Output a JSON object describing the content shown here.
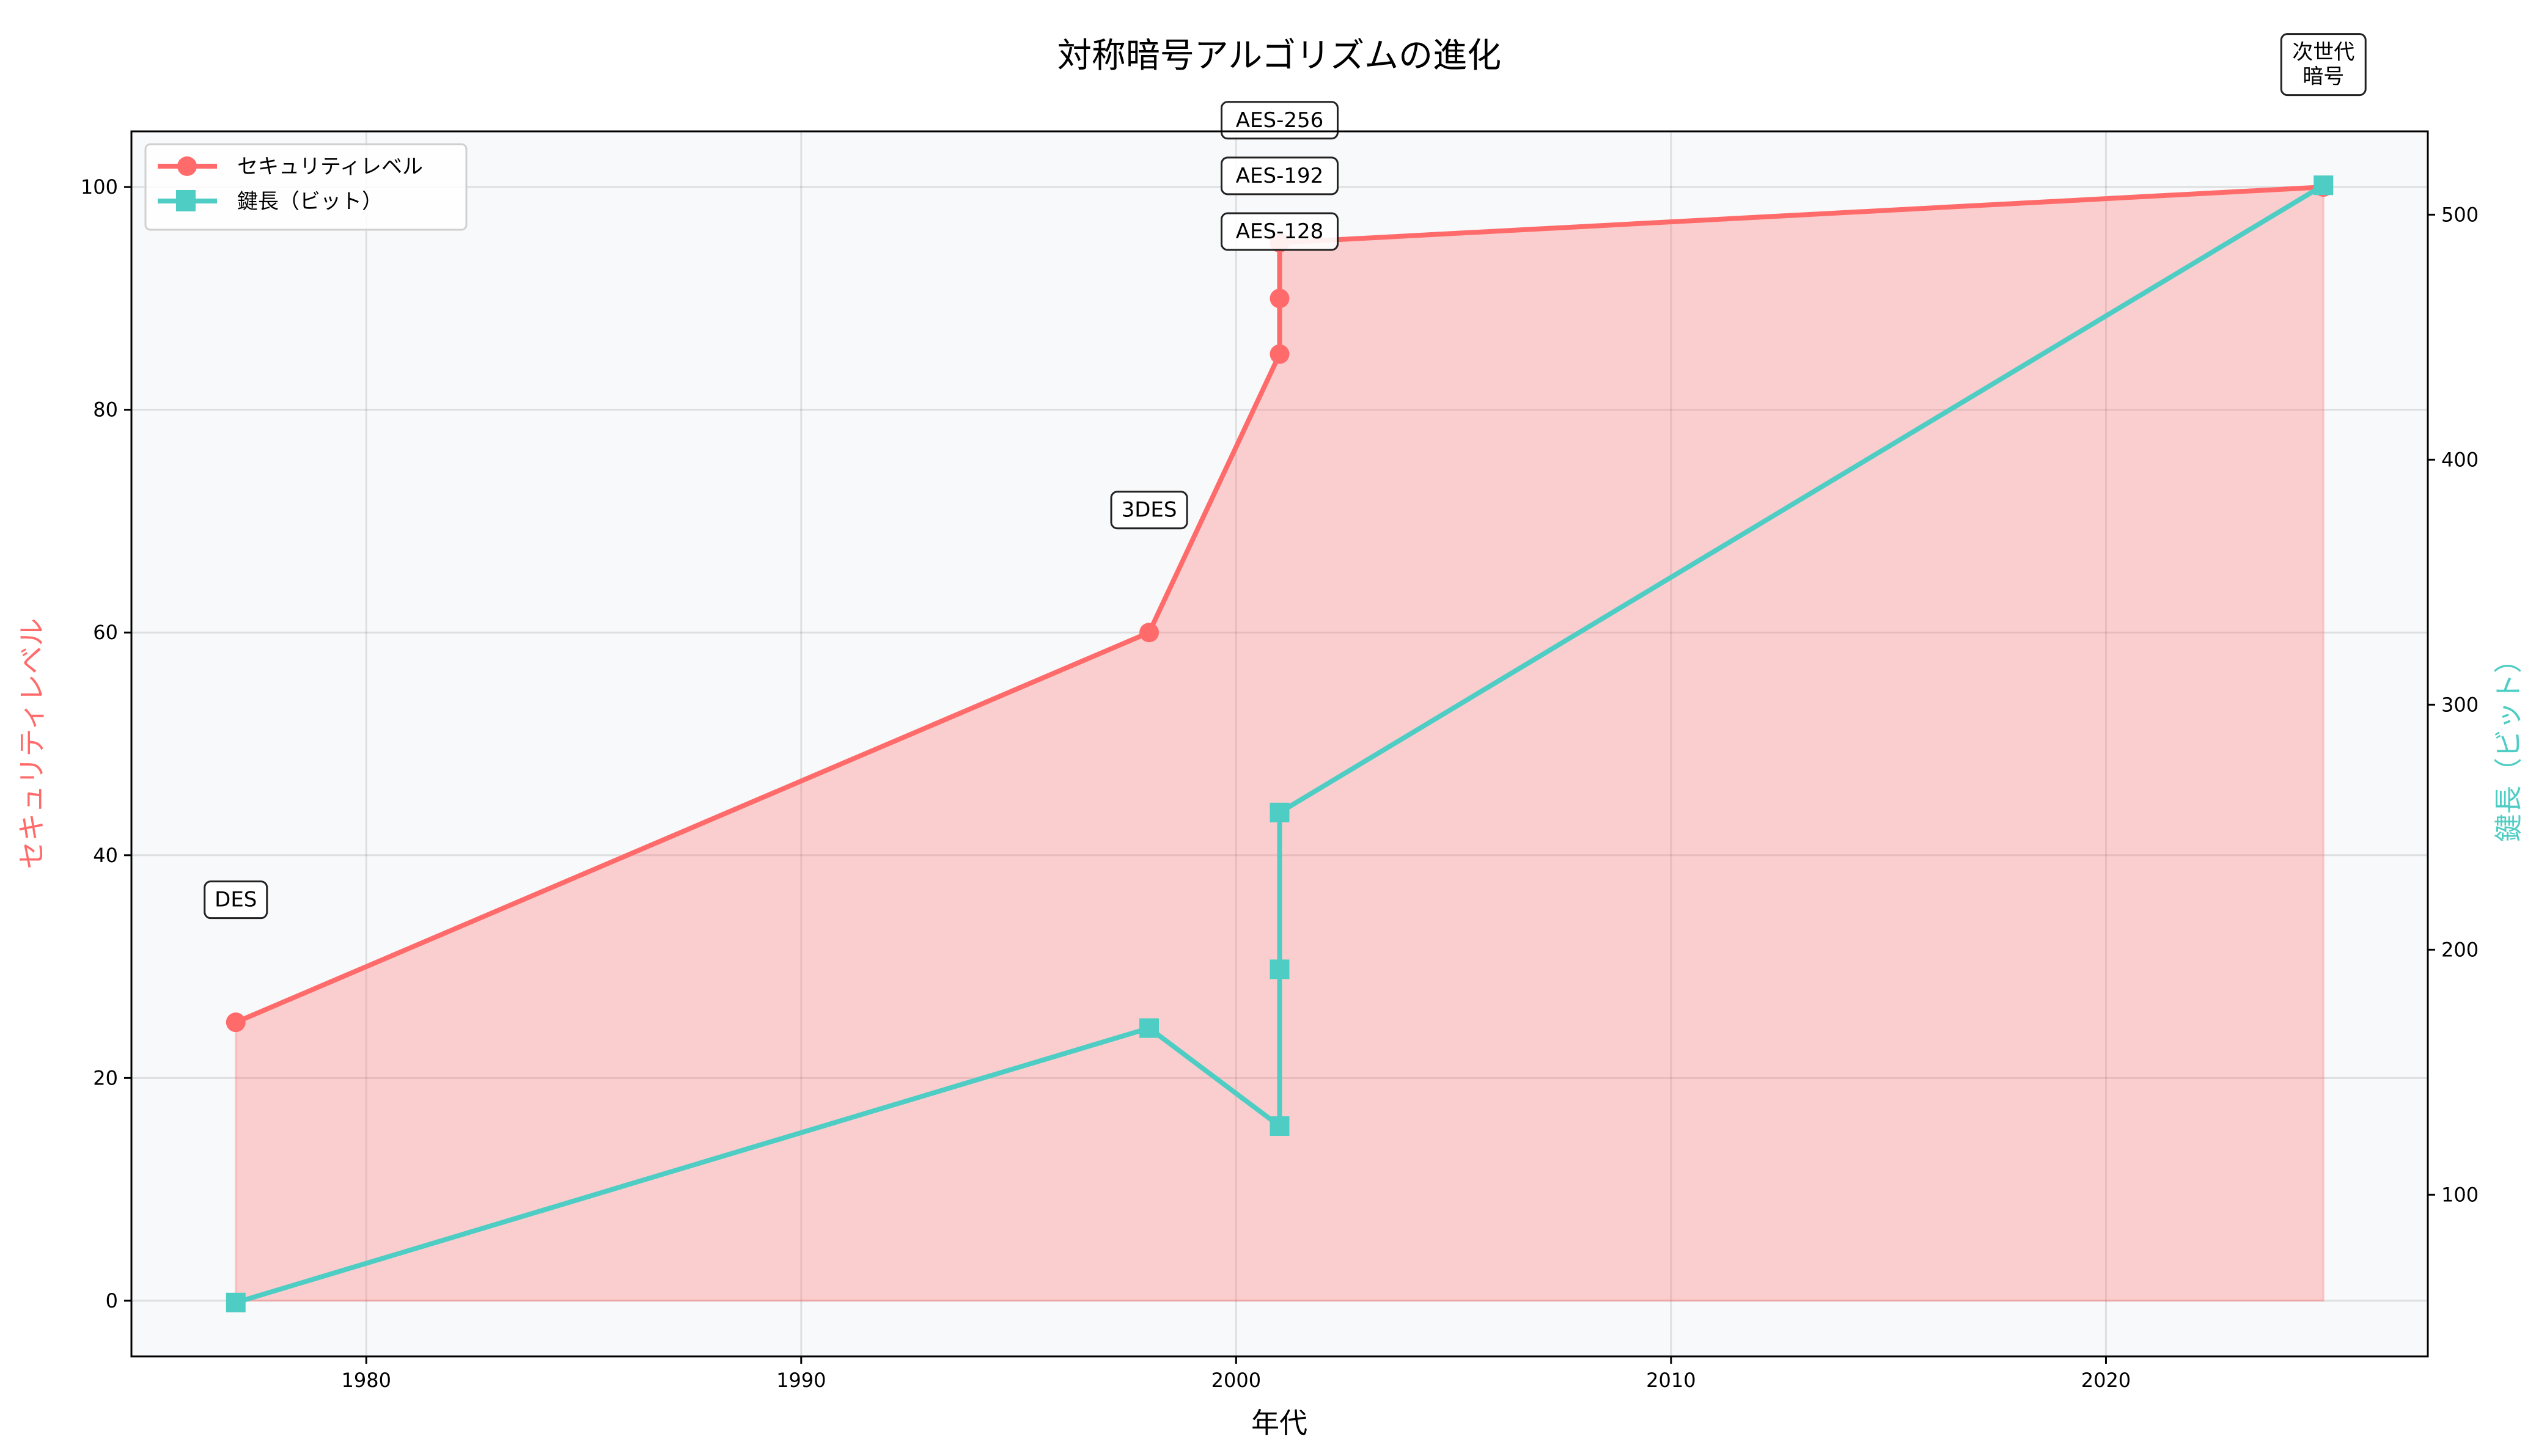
{
  "chart_data": {
    "type": "line",
    "title": "対称暗号アルゴリズムの進化",
    "xlabel": "年代",
    "ylabel_left": "セキュリティレベル",
    "ylabel_right": "鍵長（ビット）",
    "x": [
      1977,
      1998,
      2001,
      2001,
      2001,
      2025
    ],
    "series": [
      {
        "name": "セキュリティレベル",
        "axis": "left",
        "marker": "circle",
        "color": "#FF6B6B",
        "values": [
          25,
          60,
          85,
          90,
          95,
          100
        ],
        "fill_to_zero": true
      },
      {
        "name": "鍵長（ビット）",
        "axis": "right",
        "marker": "square",
        "color": "#4ECDC4",
        "values": [
          56,
          168,
          128,
          192,
          256,
          512
        ]
      }
    ],
    "annotations": [
      "DES",
      "3DES",
      "AES-128",
      "AES-192",
      "AES-256",
      "次世代\n暗号"
    ],
    "xlim": [
      1974.6,
      2027.4
    ],
    "ylim_left": [
      -5,
      105
    ],
    "ylim_right": [
      34,
      534
    ],
    "xticks": [
      1980,
      1990,
      2000,
      2010,
      2020
    ],
    "yticks_left": [
      0,
      20,
      40,
      60,
      80,
      100
    ],
    "yticks_right": [
      100,
      200,
      300,
      400,
      500
    ],
    "grid": true,
    "legend_placement": "top-left",
    "background": "#F8F9FA"
  }
}
